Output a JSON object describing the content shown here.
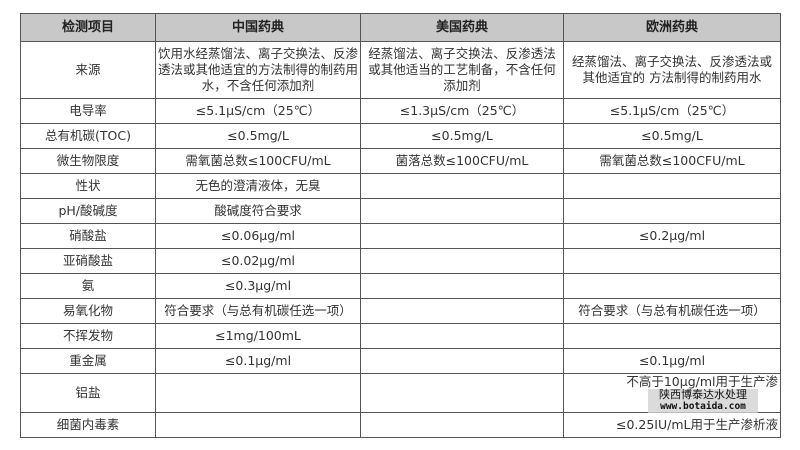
{
  "headers": [
    "检测项目",
    "中国药典",
    "美国药典",
    "欧洲药典"
  ],
  "rows": [
    [
      "来源",
      "饮用水经蒸馏法、离子交换法、反渗透法或其他适宜的方法制得的制药用水，不含任何添加剂",
      "经蒸馏法、离子交换法、反渗透法或其他适当的工艺制备，不含任何添加剂",
      "经蒸馏法、离子交换法、反渗透法或其他适宜的 方法制得的制药用水"
    ],
    [
      "电导率",
      "≤5.1μS/cm（25℃）",
      "≤1.3μS/cm（25℃）",
      "≤5.1μS/cm（25℃）"
    ],
    [
      "总有机碳(TOC)",
      "≤0.5mg/L",
      "≤0.5mg/L",
      "≤0.5mg/L"
    ],
    [
      "微生物限度",
      "需氧菌总数≤100CFU/mL",
      "菌落总数≤100CFU/mL",
      "需氧菌总数≤100CFU/mL"
    ],
    [
      "性状",
      "无色的澄清液体，无臭",
      "",
      ""
    ],
    [
      "pH/酸碱度",
      "酸碱度符合要求",
      "",
      ""
    ],
    [
      "硝酸盐",
      "≤0.06μg/ml",
      "",
      "≤0.2μg/ml"
    ],
    [
      "亚硝酸盐",
      "≤0.02μg/ml",
      "",
      ""
    ],
    [
      "氨",
      "≤0.3μg/ml",
      "",
      ""
    ],
    [
      "易氧化物",
      "符合要求（与总有机碳任选一项）",
      "",
      "符合要求（与总有机碳任选一项）"
    ],
    [
      "不挥发物",
      "≤1mg/100mL",
      "",
      ""
    ],
    [
      "重金属",
      "≤0.1μg/ml",
      "",
      "≤0.1μg/ml"
    ],
    [
      "铝盐",
      "",
      "",
      "不高于10μg/ml用于生产渗"
    ],
    [
      "细菌内毒素",
      "",
      "",
      "≤0.25IU/mL用于生产渗析液"
    ]
  ],
  "watermark": {
    "name": "陕西博泰达水处理",
    "url": "www.botaida.com"
  }
}
